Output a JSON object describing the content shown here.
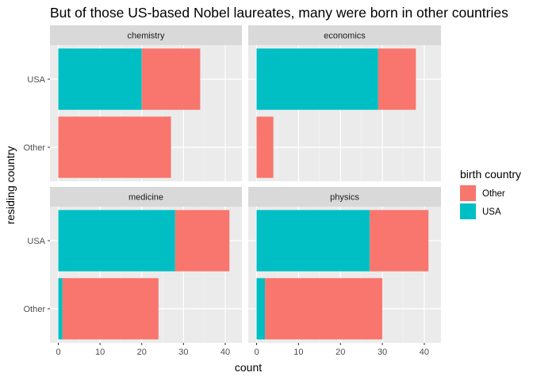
{
  "chart_data": {
    "type": "bar",
    "orientation": "horizontal",
    "stacked": true,
    "title": "But of those US-based Nobel laureates, many were born in other countries",
    "xlabel": "count",
    "ylabel": "residing country",
    "xlim": [
      0,
      42
    ],
    "x_ticks": [
      "0",
      "10",
      "20",
      "30",
      "40"
    ],
    "categories": [
      "USA",
      "Other"
    ],
    "legend": {
      "title": "birth country",
      "position": "right",
      "entries": [
        {
          "label": "Other",
          "color": "#F8766D"
        },
        {
          "label": "USA",
          "color": "#00BFC4"
        }
      ]
    },
    "grid": true,
    "facets": [
      {
        "name": "chemistry",
        "bars": [
          {
            "category": "USA",
            "usa": 20,
            "other": 14
          },
          {
            "category": "Other",
            "usa": 0,
            "other": 27
          }
        ]
      },
      {
        "name": "economics",
        "bars": [
          {
            "category": "USA",
            "usa": 29,
            "other": 9
          },
          {
            "category": "Other",
            "usa": 0,
            "other": 4
          }
        ]
      },
      {
        "name": "medicine",
        "bars": [
          {
            "category": "USA",
            "usa": 28,
            "other": 13
          },
          {
            "category": "Other",
            "usa": 1,
            "other": 23
          }
        ]
      },
      {
        "name": "physics",
        "bars": [
          {
            "category": "USA",
            "usa": 27,
            "other": 14
          },
          {
            "category": "Other",
            "usa": 2,
            "other": 28
          }
        ]
      }
    ]
  }
}
